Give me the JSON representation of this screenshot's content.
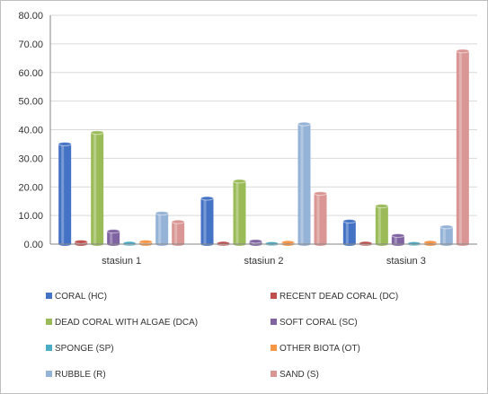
{
  "chart_data": {
    "type": "bar",
    "categories": [
      "stasiun 1",
      "stasiun 2",
      "stasiun 3"
    ],
    "ylim": [
      0,
      80
    ],
    "yticks": [
      "0.00",
      "10.00",
      "20.00",
      "30.00",
      "40.00",
      "50.00",
      "60.00",
      "70.00",
      "80.00"
    ],
    "grid": true,
    "legend_position": "bottom",
    "series": [
      {
        "name": "CORAL (HC)",
        "color": "#4472c4",
        "values": [
          35.0,
          16.0,
          8.0
        ]
      },
      {
        "name": "RECENT DEAD CORAL (DC)",
        "color": "#c0504d",
        "values": [
          0.8,
          0.3,
          0.3
        ]
      },
      {
        "name": "DEAD CORAL WITH ALGAE (DCA)",
        "color": "#9bbb59",
        "values": [
          39.0,
          22.0,
          13.3
        ]
      },
      {
        "name": "SOFT CORAL (SC)",
        "color": "#8064a2",
        "values": [
          4.5,
          1.0,
          3.0
        ]
      },
      {
        "name": "SPONGE (SP)",
        "color": "#4bacc6",
        "values": [
          0.3,
          0.2,
          0.2
        ]
      },
      {
        "name": "OTHER BIOTA (OT)",
        "color": "#f79646",
        "values": [
          0.8,
          0.6,
          0.6
        ]
      },
      {
        "name": "RUBBLE (R)",
        "color": "#95b3d7",
        "values": [
          10.8,
          42.0,
          6.0
        ]
      },
      {
        "name": "SAND (S)",
        "color": "#d99694",
        "values": [
          7.8,
          17.7,
          67.5
        ]
      }
    ]
  }
}
